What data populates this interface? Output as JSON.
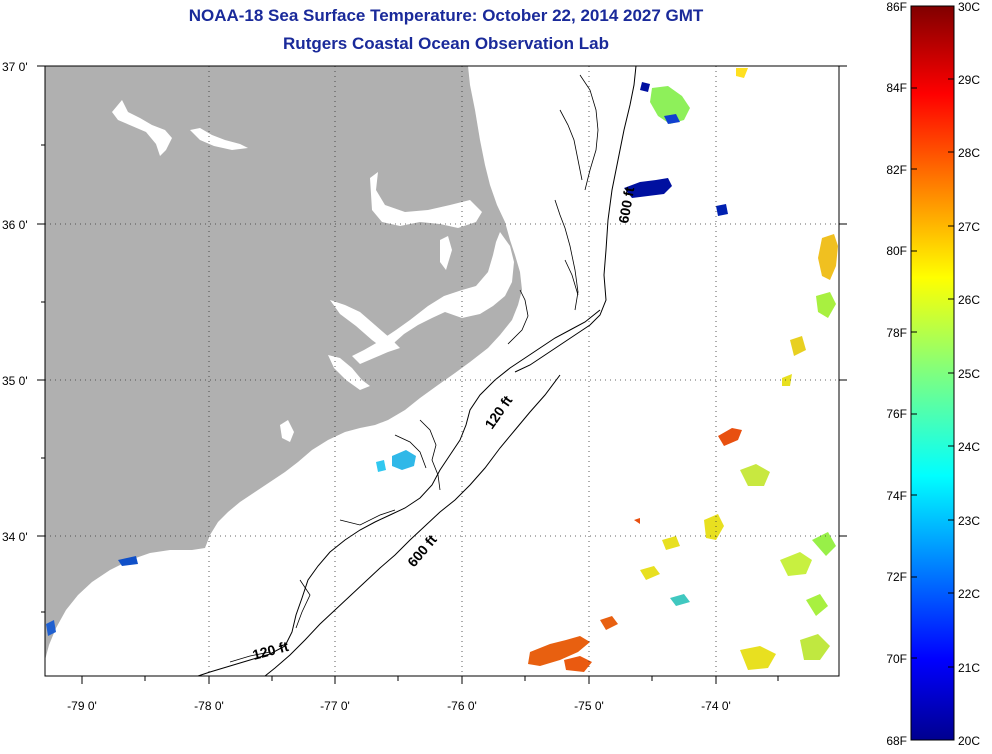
{
  "header": {
    "title": "NOAA-18 Sea Surface Temperature:  October 22, 2014 2027 GMT",
    "subtitle": "Rutgers Coastal Ocean Observation Lab"
  },
  "map": {
    "lat_labels": [
      "37 0'",
      "36 0'",
      "35 0'",
      "34 0'"
    ],
    "lon_labels": [
      "-79 0'",
      "-78 0'",
      "-77 0'",
      "-76 0'",
      "-75 0'",
      "-74 0'"
    ],
    "contour_labels": [
      "600 ft",
      "120 ft",
      "600 ft",
      "120 ft"
    ],
    "colors": {
      "land": "#b0b0b0",
      "ocean": "#ffffff",
      "contour": "#000000"
    }
  },
  "colorbar": {
    "fahrenheit": [
      "86F",
      "84F",
      "82F",
      "80F",
      "78F",
      "76F",
      "74F",
      "72F",
      "70F",
      "68F"
    ],
    "celsius": [
      "30C",
      "29C",
      "28C",
      "27C",
      "26C",
      "25C",
      "24C",
      "23C",
      "22C",
      "21C",
      "20C"
    ],
    "colormap": "jet",
    "range_c": [
      20,
      30
    ]
  }
}
